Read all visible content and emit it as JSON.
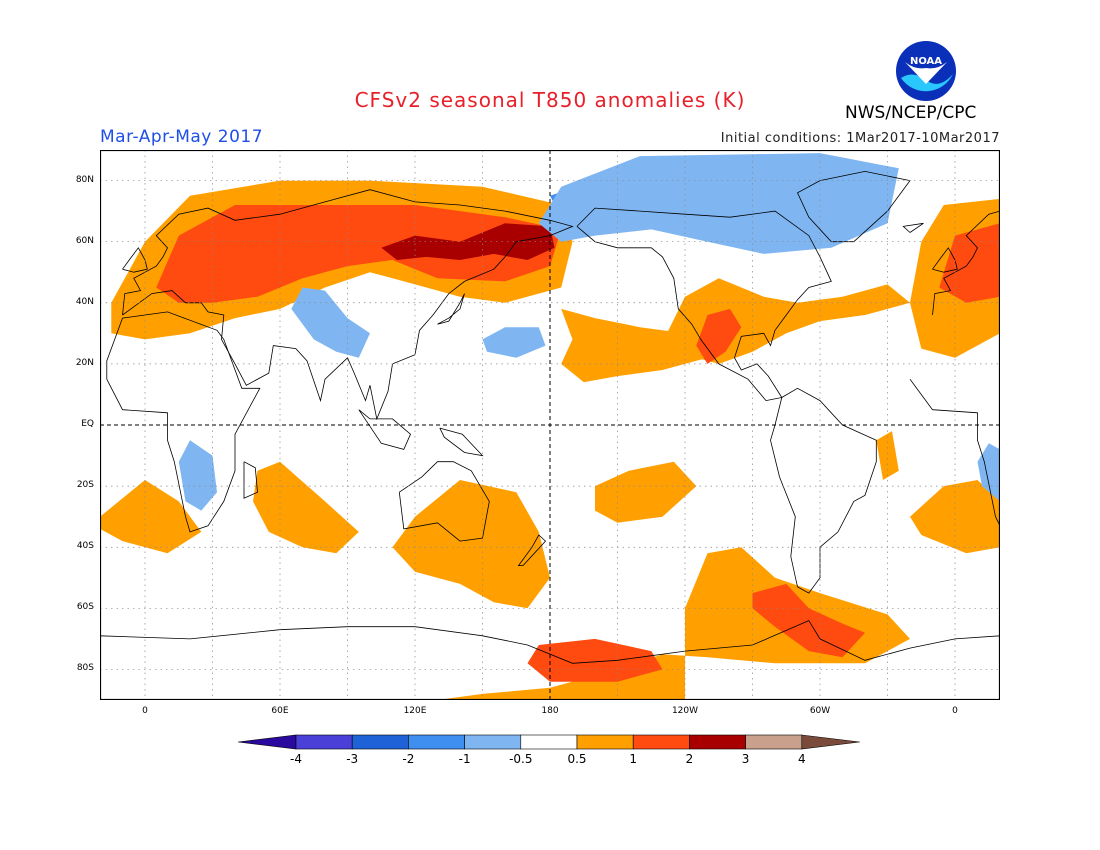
{
  "header": {
    "title": "CFSv2 seasonal T850 anomalies (K)",
    "organization": "NWS/NCEP/CPC",
    "logo_text": "NOAA",
    "season": "Mar-Apr-May 2017",
    "initial_conditions": "Initial conditions: 1Mar2017-10Mar2017"
  },
  "map": {
    "projection": "cylindrical equidistant",
    "lon_range": [
      -20,
      380
    ],
    "lat_range": [
      -90,
      90
    ],
    "grid": true,
    "lat_labels": [
      {
        "lat": 80,
        "text": "80N"
      },
      {
        "lat": 60,
        "text": "60N"
      },
      {
        "lat": 40,
        "text": "40N"
      },
      {
        "lat": 20,
        "text": "20N"
      },
      {
        "lat": 0,
        "text": "EQ"
      },
      {
        "lat": -20,
        "text": "20S"
      },
      {
        "lat": -40,
        "text": "40S"
      },
      {
        "lat": -60,
        "text": "60S"
      },
      {
        "lat": -80,
        "text": "80S"
      }
    ],
    "lon_labels": [
      {
        "lon": 0,
        "text": "0"
      },
      {
        "lon": 60,
        "text": "60E"
      },
      {
        "lon": 120,
        "text": "120E"
      },
      {
        "lon": 180,
        "text": "180"
      },
      {
        "lon": 240,
        "text": "120W"
      },
      {
        "lon": 300,
        "text": "60W"
      },
      {
        "lon": 360,
        "text": "0"
      }
    ]
  },
  "colorbar": {
    "levels": [
      "-4",
      "-3",
      "-2",
      "-1",
      "-0.5",
      "0.5",
      "1",
      "2",
      "3",
      "4"
    ],
    "colors": [
      "#2a0a9e",
      "#4a3fd6",
      "#1f62d8",
      "#3f8ff0",
      "#7fb6f2",
      "#ffffff",
      "#ffa000",
      "#ff4a10",
      "#a80000",
      "#c8a08c",
      "#7a4a3a"
    ]
  },
  "anomaly_regions": [
    {
      "id": "eurasia-warm",
      "level": "1",
      "color": "#ffa000",
      "poly": [
        [
          -15,
          40
        ],
        [
          0,
          60
        ],
        [
          20,
          75
        ],
        [
          60,
          80
        ],
        [
          100,
          80
        ],
        [
          150,
          78
        ],
        [
          185,
          72
        ],
        [
          190,
          60
        ],
        [
          185,
          45
        ],
        [
          160,
          40
        ],
        [
          140,
          42
        ],
        [
          120,
          46
        ],
        [
          100,
          50
        ],
        [
          80,
          45
        ],
        [
          60,
          38
        ],
        [
          40,
          35
        ],
        [
          20,
          30
        ],
        [
          0,
          28
        ],
        [
          -15,
          30
        ]
      ]
    },
    {
      "id": "eurasia-2k",
      "level": "2",
      "color": "#ff4a10",
      "poly": [
        [
          5,
          45
        ],
        [
          15,
          62
        ],
        [
          40,
          72
        ],
        [
          80,
          72
        ],
        [
          120,
          72
        ],
        [
          160,
          68
        ],
        [
          185,
          64
        ],
        [
          180,
          52
        ],
        [
          160,
          47
        ],
        [
          130,
          48
        ],
        [
          110,
          54
        ],
        [
          90,
          52
        ],
        [
          70,
          48
        ],
        [
          50,
          42
        ],
        [
          30,
          40
        ],
        [
          15,
          40
        ]
      ]
    },
    {
      "id": "siberia-3k",
      "level": "3",
      "color": "#a80000",
      "poly": [
        [
          105,
          58
        ],
        [
          120,
          62
        ],
        [
          140,
          60
        ],
        [
          160,
          66
        ],
        [
          180,
          65
        ],
        [
          182,
          58
        ],
        [
          170,
          54
        ],
        [
          155,
          56
        ],
        [
          140,
          54
        ],
        [
          125,
          55
        ],
        [
          112,
          54
        ]
      ]
    },
    {
      "id": "nw-pacific-warm",
      "level": "1",
      "color": "#ffa000",
      "poly": [
        [
          185,
          38
        ],
        [
          200,
          35
        ],
        [
          220,
          32
        ],
        [
          240,
          30
        ],
        [
          255,
          35
        ],
        [
          250,
          22
        ],
        [
          230,
          18
        ],
        [
          210,
          16
        ],
        [
          195,
          14
        ],
        [
          185,
          20
        ],
        [
          190,
          28
        ]
      ]
    },
    {
      "id": "north-america-warm",
      "level": "1",
      "color": "#ffa000",
      "poly": [
        [
          232,
          30
        ],
        [
          240,
          42
        ],
        [
          255,
          48
        ],
        [
          275,
          42
        ],
        [
          290,
          40
        ],
        [
          310,
          42
        ],
        [
          330,
          46
        ],
        [
          340,
          40
        ],
        [
          320,
          36
        ],
        [
          300,
          34
        ],
        [
          285,
          30
        ],
        [
          270,
          24
        ],
        [
          255,
          20
        ],
        [
          245,
          22
        ]
      ]
    },
    {
      "id": "north-america-2k",
      "level": "2",
      "color": "#ff4a10",
      "poly": [
        [
          245,
          26
        ],
        [
          250,
          36
        ],
        [
          260,
          38
        ],
        [
          265,
          32
        ],
        [
          258,
          24
        ],
        [
          250,
          20
        ]
      ]
    },
    {
      "id": "europe-warm-right",
      "level": "1",
      "color": "#ffa000",
      "poly": [
        [
          340,
          40
        ],
        [
          345,
          60
        ],
        [
          355,
          72
        ],
        [
          380,
          74
        ],
        [
          380,
          30
        ],
        [
          360,
          22
        ],
        [
          345,
          25
        ]
      ]
    },
    {
      "id": "europe-2k-right",
      "level": "2",
      "color": "#ff4a10",
      "poly": [
        [
          353,
          45
        ],
        [
          360,
          62
        ],
        [
          380,
          66
        ],
        [
          380,
          42
        ],
        [
          365,
          40
        ]
      ]
    },
    {
      "id": "arctic-cold",
      "level": "-1",
      "color": "#3f8ff0",
      "poly": [
        [
          180,
          75
        ],
        [
          200,
          80
        ],
        [
          240,
          86
        ],
        [
          290,
          86
        ],
        [
          330,
          82
        ],
        [
          320,
          72
        ],
        [
          300,
          65
        ],
        [
          280,
          62
        ],
        [
          260,
          66
        ],
        [
          240,
          70
        ],
        [
          220,
          72
        ],
        [
          200,
          70
        ],
        [
          185,
          68
        ]
      ]
    },
    {
      "id": "arctic-cold-light",
      "level": "-0.5",
      "color": "#7fb6f2",
      "poly": [
        [
          175,
          66
        ],
        [
          185,
          78
        ],
        [
          220,
          88
        ],
        [
          300,
          89
        ],
        [
          335,
          84
        ],
        [
          330,
          66
        ],
        [
          305,
          58
        ],
        [
          275,
          56
        ],
        [
          250,
          60
        ],
        [
          225,
          64
        ],
        [
          200,
          62
        ],
        [
          185,
          60
        ]
      ]
    },
    {
      "id": "central-asia-cold",
      "level": "-0.5",
      "color": "#7fb6f2",
      "poly": [
        [
          65,
          38
        ],
        [
          70,
          45
        ],
        [
          80,
          44
        ],
        [
          90,
          35
        ],
        [
          100,
          30
        ],
        [
          95,
          22
        ],
        [
          85,
          24
        ],
        [
          75,
          28
        ]
      ]
    },
    {
      "id": "pacific-cold-small",
      "level": "-0.5",
      "color": "#7fb6f2",
      "poly": [
        [
          150,
          28
        ],
        [
          160,
          32
        ],
        [
          175,
          32
        ],
        [
          178,
          26
        ],
        [
          165,
          22
        ],
        [
          152,
          24
        ]
      ]
    },
    {
      "id": "south-africa-cold",
      "level": "-0.5",
      "color": "#7fb6f2",
      "poly": [
        [
          15,
          -12
        ],
        [
          20,
          -5
        ],
        [
          30,
          -10
        ],
        [
          32,
          -22
        ],
        [
          25,
          -28
        ],
        [
          18,
          -25
        ]
      ]
    },
    {
      "id": "south-indian-warm",
      "level": "1",
      "color": "#ffa000",
      "poly": [
        [
          50,
          -15
        ],
        [
          60,
          -12
        ],
        [
          80,
          -25
        ],
        [
          95,
          -35
        ],
        [
          85,
          -42
        ],
        [
          70,
          -40
        ],
        [
          55,
          -35
        ],
        [
          48,
          -25
        ]
      ]
    },
    {
      "id": "south-africa-warm-left",
      "level": "1",
      "color": "#ffa000",
      "poly": [
        [
          -20,
          -30
        ],
        [
          0,
          -18
        ],
        [
          15,
          -25
        ],
        [
          25,
          -35
        ],
        [
          10,
          -42
        ],
        [
          -10,
          -38
        ],
        [
          -20,
          -34
        ]
      ]
    },
    {
      "id": "australia-nz-warm",
      "level": "1",
      "color": "#ffa000",
      "poly": [
        [
          120,
          -30
        ],
        [
          140,
          -18
        ],
        [
          165,
          -22
        ],
        [
          175,
          -35
        ],
        [
          180,
          -50
        ],
        [
          170,
          -60
        ],
        [
          155,
          -58
        ],
        [
          140,
          -52
        ],
        [
          120,
          -48
        ],
        [
          110,
          -40
        ]
      ]
    },
    {
      "id": "south-pacific-warm",
      "level": "1",
      "color": "#ffa000",
      "poly": [
        [
          200,
          -20
        ],
        [
          215,
          -15
        ],
        [
          235,
          -12
        ],
        [
          245,
          -20
        ],
        [
          230,
          -30
        ],
        [
          210,
          -32
        ],
        [
          200,
          -28
        ]
      ]
    },
    {
      "id": "south-america-warm",
      "level": "1",
      "color": "#ffa000",
      "poly": [
        [
          240,
          -60
        ],
        [
          250,
          -42
        ],
        [
          265,
          -40
        ],
        [
          280,
          -50
        ],
        [
          300,
          -55
        ],
        [
          330,
          -62
        ],
        [
          340,
          -70
        ],
        [
          320,
          -78
        ],
        [
          280,
          -78
        ],
        [
          250,
          -76
        ],
        [
          230,
          -75
        ],
        [
          210,
          -80
        ],
        [
          180,
          -86
        ],
        [
          150,
          -88
        ],
        [
          130,
          -90
        ],
        [
          240,
          -90
        ]
      ]
    },
    {
      "id": "south-america-2k",
      "level": "2",
      "color": "#ff4a10",
      "poly": [
        [
          270,
          -55
        ],
        [
          285,
          -52
        ],
        [
          295,
          -60
        ],
        [
          310,
          -65
        ],
        [
          320,
          -68
        ],
        [
          310,
          -76
        ],
        [
          295,
          -74
        ],
        [
          280,
          -66
        ],
        [
          270,
          -60
        ]
      ]
    },
    {
      "id": "ross-sea-2k",
      "level": "2",
      "color": "#ff4a10",
      "poly": [
        [
          175,
          -72
        ],
        [
          200,
          -70
        ],
        [
          225,
          -74
        ],
        [
          230,
          -80
        ],
        [
          210,
          -84
        ],
        [
          180,
          -84
        ],
        [
          170,
          -78
        ]
      ]
    },
    {
      "id": "sa-east-warm",
      "level": "1",
      "color": "#ffa000",
      "poly": [
        [
          325,
          -5
        ],
        [
          332,
          -2
        ],
        [
          335,
          -15
        ],
        [
          328,
          -18
        ]
      ]
    },
    {
      "id": "s-atlantic-warm-right",
      "level": "1",
      "color": "#ffa000",
      "poly": [
        [
          340,
          -30
        ],
        [
          355,
          -20
        ],
        [
          370,
          -18
        ],
        [
          380,
          -25
        ],
        [
          380,
          -40
        ],
        [
          365,
          -42
        ],
        [
          345,
          -36
        ]
      ]
    },
    {
      "id": "s-africa-cold-right",
      "level": "-0.5",
      "color": "#7fb6f2",
      "poly": [
        [
          370,
          -12
        ],
        [
          375,
          -6
        ],
        [
          380,
          -8
        ],
        [
          380,
          -25
        ],
        [
          372,
          -20
        ]
      ]
    }
  ]
}
